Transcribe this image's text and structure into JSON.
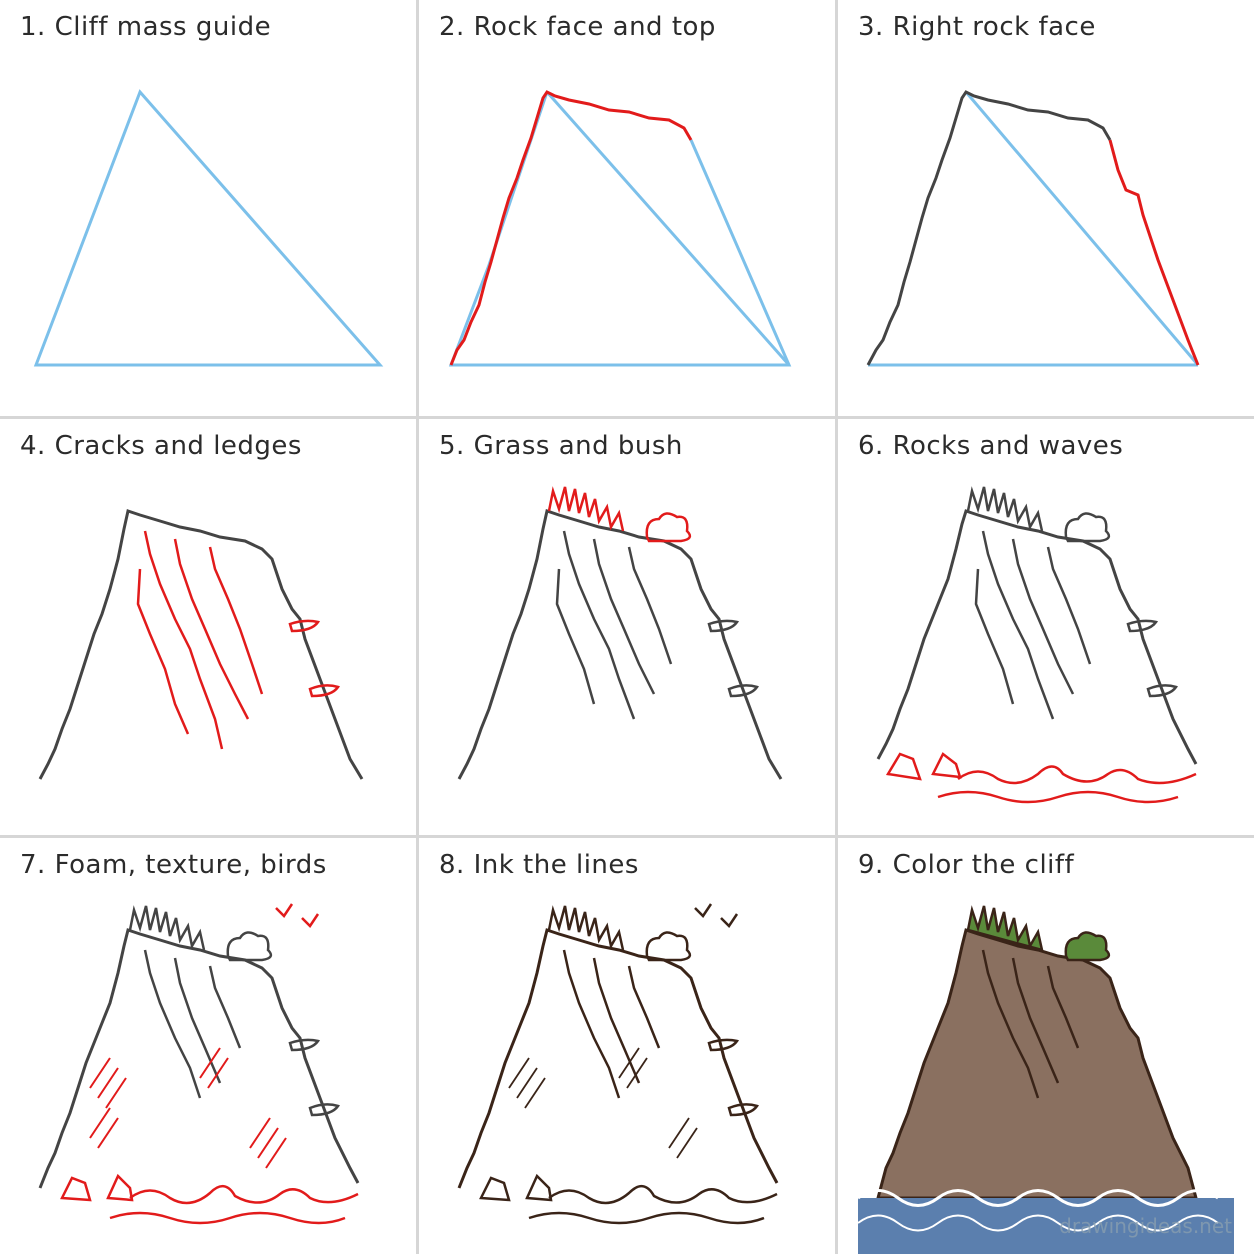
{
  "steps": [
    {
      "num": "1.",
      "title": "Cliff mass guide"
    },
    {
      "num": "2.",
      "title": "Rock face and top"
    },
    {
      "num": "3.",
      "title": "Right rock face"
    },
    {
      "num": "4.",
      "title": "Cracks and ledges"
    },
    {
      "num": "5.",
      "title": "Grass and bush"
    },
    {
      "num": "6.",
      "title": "Rocks and waves"
    },
    {
      "num": "7.",
      "title": "Foam, texture, birds"
    },
    {
      "num": "8.",
      "title": "Ink the lines"
    },
    {
      "num": "9.",
      "title": "Color the cliff"
    }
  ],
  "watermark": "drawingideas.net",
  "colors": {
    "guide": "#7cc0ea",
    "new_stroke": "#e21b1b",
    "pencil": "#444444",
    "ink": "#3a2418",
    "rock_fill": "#8a7060",
    "grass": "#5a8a3a",
    "water": "#5b7fae"
  }
}
